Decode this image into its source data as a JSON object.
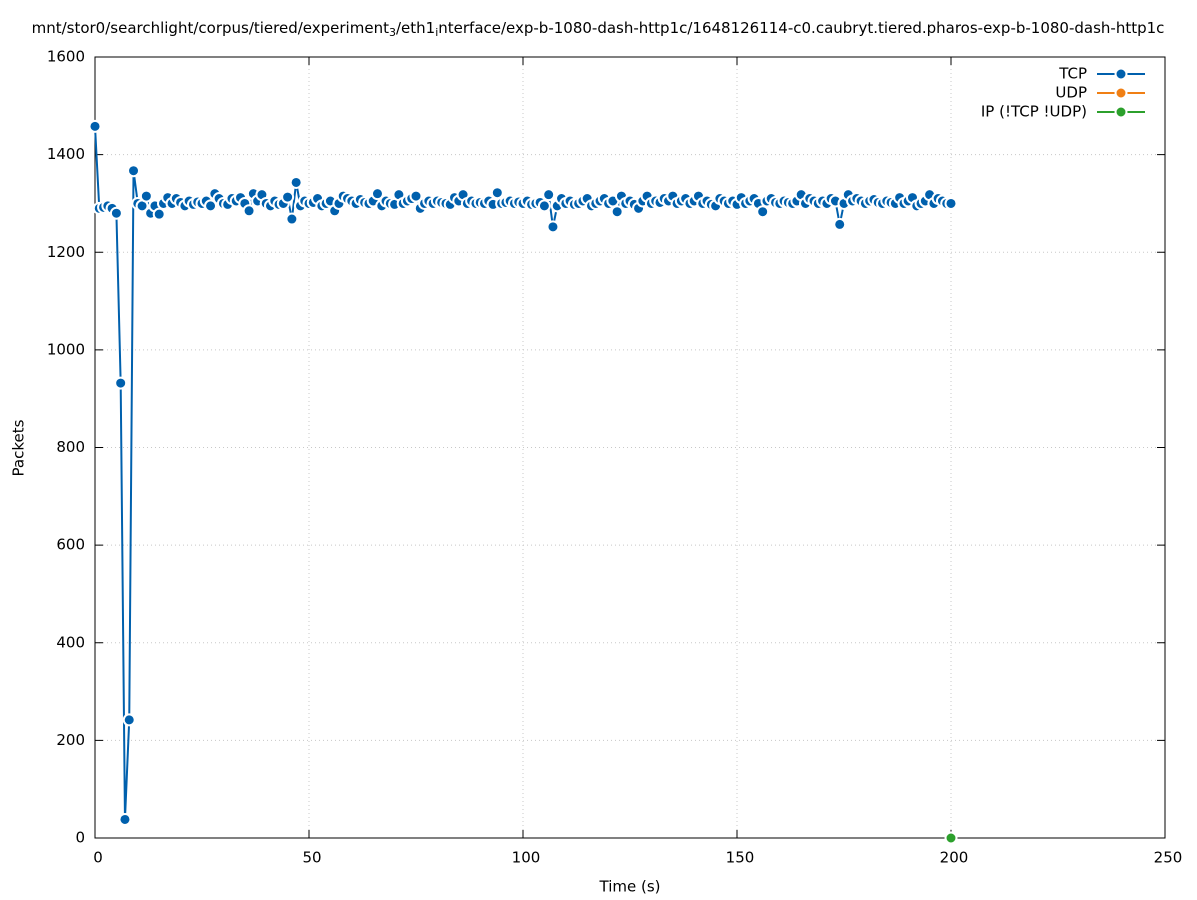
{
  "chart_data": {
    "type": "line",
    "title": [
      "mnt/stor0/searchlight/corpus/tiered/experiment",
      "3",
      "/eth1",
      "i",
      "nterface/exp-b-1080-dash-http1c/1648126114-c0.caubryt.tiered.pharos-exp-b-1080-dash-http1c"
    ],
    "x_label": "Time (s)",
    "y_label": "Packets",
    "xlim": [
      0,
      250
    ],
    "ylim": [
      0,
      1600
    ],
    "xticks": [
      0,
      50,
      100,
      150,
      200,
      250
    ],
    "yticks": [
      0,
      200,
      400,
      600,
      800,
      1000,
      1200,
      1400,
      1600
    ],
    "grid": true,
    "legend": "top-right",
    "series": [
      {
        "name": "TCP",
        "color": "#0060ad",
        "x": [
          0,
          1,
          2,
          3,
          4,
          5,
          6,
          7,
          8,
          9,
          10,
          11,
          12,
          13,
          14,
          15,
          16,
          17,
          18,
          19,
          20,
          21,
          22,
          23,
          24,
          25,
          26,
          27,
          28,
          29,
          30,
          31,
          32,
          33,
          34,
          35,
          36,
          37,
          38,
          39,
          40,
          41,
          42,
          43,
          44,
          45,
          46,
          47,
          48,
          49,
          50,
          51,
          52,
          53,
          54,
          55,
          56,
          57,
          58,
          59,
          60,
          61,
          62,
          63,
          64,
          65,
          66,
          67,
          68,
          69,
          70,
          71,
          72,
          73,
          74,
          75,
          76,
          77,
          78,
          79,
          80,
          81,
          82,
          83,
          84,
          85,
          86,
          87,
          88,
          89,
          90,
          91,
          92,
          93,
          94,
          95,
          96,
          97,
          98,
          99,
          100,
          101,
          102,
          103,
          104,
          105,
          106,
          107,
          108,
          109,
          110,
          111,
          112,
          113,
          114,
          115,
          116,
          117,
          118,
          119,
          120,
          121,
          122,
          123,
          124,
          125,
          126,
          127,
          128,
          129,
          130,
          131,
          132,
          133,
          134,
          135,
          136,
          137,
          138,
          139,
          140,
          141,
          142,
          143,
          144,
          145,
          146,
          147,
          148,
          149,
          150,
          151,
          152,
          153,
          154,
          155,
          156,
          157,
          158,
          159,
          160,
          161,
          162,
          163,
          164,
          165,
          166,
          167,
          168,
          169,
          170,
          171,
          172,
          173,
          174,
          175,
          176,
          177,
          178,
          179,
          180,
          181,
          182,
          183,
          184,
          185,
          186,
          187,
          188,
          189,
          190,
          191,
          192,
          193,
          194,
          195,
          196,
          197,
          198,
          199,
          200
        ],
        "values": [
          1458,
          1290,
          1292,
          1295,
          1290,
          1280,
          932,
          38,
          242,
          1367,
          1300,
          1295,
          1315,
          1280,
          1295,
          1278,
          1300,
          1312,
          1300,
          1310,
          1302,
          1295,
          1305,
          1298,
          1303,
          1300,
          1305,
          1295,
          1320,
          1310,
          1300,
          1298,
          1310,
          1305,
          1312,
          1300,
          1285,
          1320,
          1305,
          1318,
          1300,
          1295,
          1305,
          1298,
          1300,
          1313,
          1268,
          1343,
          1295,
          1305,
          1300,
          1302,
          1310,
          1295,
          1300,
          1305,
          1285,
          1300,
          1315,
          1310,
          1305,
          1300,
          1308,
          1302,
          1300,
          1305,
          1320,
          1295,
          1305,
          1300,
          1298,
          1318,
          1300,
          1305,
          1310,
          1315,
          1290,
          1300,
          1305,
          1300,
          1305,
          1302,
          1300,
          1298,
          1312,
          1305,
          1318,
          1300,
          1305,
          1300,
          1302,
          1300,
          1305,
          1298,
          1322,
          1300,
          1302,
          1305,
          1300,
          1303,
          1300,
          1305,
          1298,
          1300,
          1302,
          1295,
          1318,
          1252,
          1295,
          1310,
          1300,
          1305,
          1298,
          1300,
          1305,
          1310,
          1295,
          1300,
          1305,
          1310,
          1300,
          1305,
          1283,
          1315,
          1300,
          1305,
          1298,
          1290,
          1305,
          1315,
          1300,
          1305,
          1302,
          1310,
          1305,
          1315,
          1300,
          1305,
          1310,
          1300,
          1305,
          1315,
          1300,
          1305,
          1298,
          1295,
          1310,
          1305,
          1300,
          1305,
          1298,
          1312,
          1300,
          1305,
          1310,
          1300,
          1283,
          1305,
          1310,
          1302,
          1300,
          1305,
          1302,
          1300,
          1305,
          1318,
          1300,
          1310,
          1305,
          1300,
          1305,
          1300,
          1310,
          1305,
          1257,
          1300,
          1318,
          1305,
          1310,
          1305,
          1300,
          1305,
          1308,
          1302,
          1300,
          1305,
          1302,
          1300,
          1312,
          1300,
          1305,
          1312,
          1295,
          1300,
          1305,
          1318,
          1300,
          1310,
          1305,
          1300,
          1300
        ]
      },
      {
        "name": "UDP",
        "color": "#f07f14",
        "x": [],
        "values": []
      },
      {
        "name": "IP (!TCP  !UDP)",
        "color": "#2ca02c",
        "x": [
          200
        ],
        "values": [
          0
        ]
      }
    ]
  }
}
